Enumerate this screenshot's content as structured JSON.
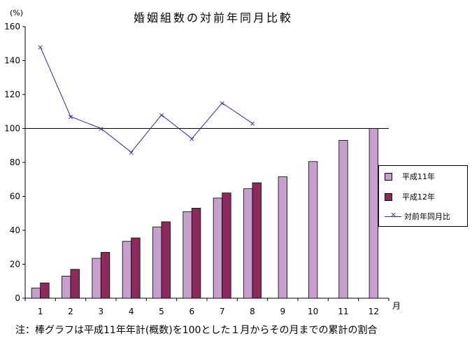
{
  "chart_data": {
    "type": "bar",
    "title": "婚姻組数の対前年同月比較",
    "ylabel": "(%)",
    "xlabel": "月",
    "categories": [
      "1",
      "2",
      "3",
      "4",
      "5",
      "6",
      "7",
      "8",
      "9",
      "10",
      "11",
      "12"
    ],
    "ylim": [
      0,
      160
    ],
    "yticks": [
      "0",
      "20",
      "40",
      "60",
      "80",
      "100",
      "120",
      "140",
      "160"
    ],
    "reference_line": 100,
    "series": [
      {
        "name": "平成11年",
        "type": "bar",
        "color": "#c69fcc",
        "values": [
          6,
          13,
          23.5,
          33.5,
          42,
          51,
          59,
          64.5,
          71.5,
          80.5,
          93,
          100
        ]
      },
      {
        "name": "平成12年",
        "type": "bar",
        "color": "#8b2a5b",
        "values": [
          9,
          17,
          27,
          35.5,
          45,
          53,
          62,
          68,
          null,
          null,
          null,
          null
        ]
      },
      {
        "name": "対前年同月比",
        "type": "line",
        "color": "#2b2ba0",
        "values": [
          148,
          107,
          100,
          86,
          108,
          94,
          115,
          103,
          null,
          null,
          null,
          null
        ]
      }
    ],
    "legend_position": "right",
    "note": "注：棒グラフは平成11年年計(概数)を100とした１月からその月までの累計の割合"
  }
}
